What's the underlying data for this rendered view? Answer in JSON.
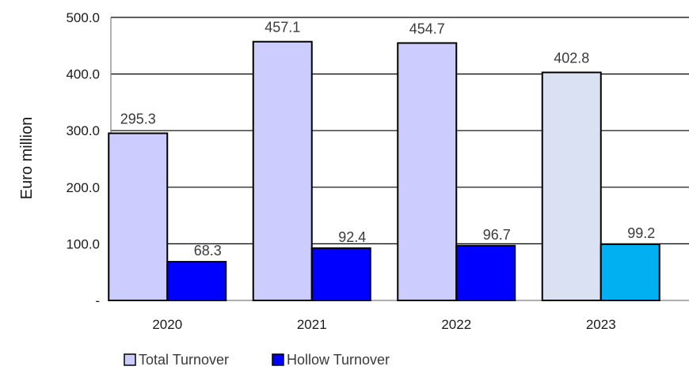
{
  "chart_data": {
    "type": "bar",
    "title": "",
    "xlabel": "",
    "ylabel": "Euro million",
    "ylim": [
      0,
      500
    ],
    "y_ticks": [
      0,
      100,
      200,
      300,
      400,
      500
    ],
    "y_tick_labels": [
      "-",
      "100.0",
      "200.0",
      "300.0",
      "400.0",
      "500.0"
    ],
    "grid": "horizontal",
    "legend_position": "bottom-left",
    "categories": [
      "2020",
      "2021",
      "2022",
      "2023"
    ],
    "series": [
      {
        "name": "Total Turnover",
        "values": [
          295.3,
          457.1,
          454.7,
          402.8
        ],
        "labels": [
          "295.3",
          "457.1",
          "454.7",
          "402.8"
        ],
        "colors": [
          "#ccccff",
          "#ccccff",
          "#ccccff",
          "#d9e1f2"
        ]
      },
      {
        "name": "Hollow Turnover",
        "values": [
          68.3,
          92.4,
          96.7,
          99.2
        ],
        "labels": [
          "68.3",
          "92.4",
          "96.7",
          "99.2"
        ],
        "colors": [
          "#0000ff",
          "#0000ff",
          "#0000ff",
          "#00b0f0"
        ]
      }
    ]
  }
}
